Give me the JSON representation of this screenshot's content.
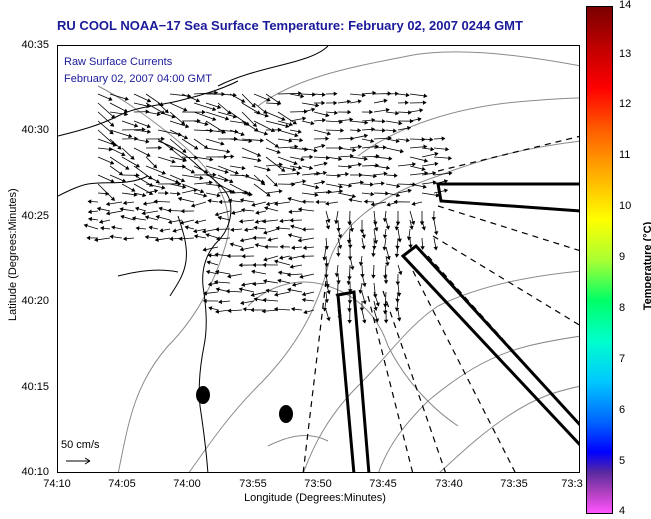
{
  "title": "RU COOL  NOAA−17  Sea Surface Temperature:  February 02, 2007 0244 GMT",
  "overlay": {
    "currents_label": "Raw Surface Currents",
    "currents_time": "February 02, 2007 04:00 GMT",
    "scale_label": "50 cm/s"
  },
  "axes": {
    "xlabel": "Longitude (Degrees:Minutes)",
    "ylabel": "Latitude (Degrees:Minutes)",
    "xticks": [
      "74:10",
      "74:05",
      "74:00",
      "73:55",
      "73:50",
      "73:45",
      "73:40",
      "73:35",
      "73:3"
    ],
    "yticks": [
      "40:35",
      "40:30",
      "40:25",
      "40:20",
      "40:15",
      "40:10"
    ]
  },
  "colorbar": {
    "label": "Temperature (°C)",
    "ticks": [
      "14",
      "13",
      "12",
      "11",
      "10",
      "9",
      "8",
      "7",
      "6",
      "5",
      "4"
    ],
    "range": [
      4,
      14
    ]
  },
  "colors": {
    "title": "#1a1a9a",
    "coast": "#000000",
    "bathymetry": "#888888",
    "arrows": "#000000"
  }
}
